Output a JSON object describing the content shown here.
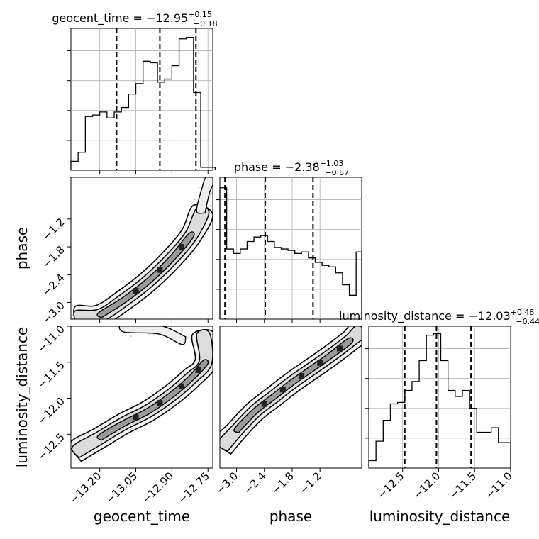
{
  "chart_data": {
    "type": "corner",
    "params": [
      "geocent_time",
      "phase",
      "luminosity_distance"
    ],
    "grid": true,
    "quantile_line_style": "dashed",
    "panel_titles": [
      {
        "param": "geocent_time",
        "text": "geocent_time = −12.95",
        "sup": "+0.15",
        "sub": "−0.18"
      },
      {
        "param": "phase",
        "text": "phase = −2.38",
        "sup": "+1.03",
        "sub": "−0.87"
      },
      {
        "param": "luminosity_distance",
        "text": "luminosity_distance = −12.03",
        "sup": "+0.48",
        "sub": "−0.44"
      }
    ],
    "axis_labels": {
      "x": [
        "geocent_time",
        "phase",
        "luminosity_distance"
      ],
      "y": [
        "phase",
        "luminosity_distance"
      ]
    },
    "ranges": {
      "geocent_time": [
        -13.32,
        -12.73
      ],
      "phase": [
        -3.36,
        -0.3
      ],
      "luminosity_distance": [
        -12.97,
        -11.0
      ]
    },
    "ticks": {
      "geocent_time": {
        "values": [
          -13.2,
          -13.05,
          -12.9,
          -12.75
        ],
        "labels": [
          "−13.20",
          "−13.05",
          "−12.90",
          "−12.75"
        ]
      },
      "phase": {
        "values": [
          -3.0,
          -2.4,
          -1.8,
          -1.2
        ],
        "labels": [
          "−3.0",
          "−2.4",
          "−1.8",
          "−1.2"
        ]
      },
      "luminosity_distance": {
        "values": [
          -12.5,
          -12.0,
          -11.5,
          -11.0
        ],
        "labels": [
          "−12.5",
          "−12.0",
          "−11.5",
          "−11.0"
        ]
      }
    },
    "histograms": [
      {
        "param": "geocent_time",
        "bin_edges": [
          -13.32,
          -13.29,
          -13.26,
          -13.23,
          -13.2,
          -13.17,
          -13.14,
          -13.11,
          -13.08,
          -13.05,
          -13.02,
          -12.99,
          -12.96,
          -12.93,
          -12.9,
          -12.87,
          -12.84,
          -12.81,
          -12.78,
          -12.75,
          -12.72
        ],
        "counts": [
          6,
          12,
          36,
          37,
          39,
          35,
          39,
          42,
          51,
          58,
          73,
          72,
          59,
          61,
          70,
          88,
          89,
          52,
          2,
          2
        ],
        "ymax": 95,
        "quantiles": [
          -13.13,
          -12.95,
          -12.8
        ]
      },
      {
        "param": "phase",
        "bin_edges": [
          -3.36,
          -3.213,
          -3.066,
          -2.919,
          -2.772,
          -2.625,
          -2.478,
          -2.331,
          -2.184,
          -2.037,
          -1.89,
          -1.743,
          -1.596,
          -1.449,
          -1.302,
          -1.155,
          -1.008,
          -0.861,
          -0.714,
          -0.567,
          -0.42,
          -0.3
        ],
        "counts": [
          88,
          47,
          44,
          47,
          52,
          55,
          56,
          52,
          48,
          47,
          46,
          44,
          45,
          41,
          38,
          36,
          35,
          31,
          23,
          16,
          45
        ],
        "ymax": 95,
        "quantiles": [
          -3.25,
          -2.38,
          -1.35
        ]
      },
      {
        "param": "luminosity_distance",
        "bin_edges": [
          -12.97,
          -12.87,
          -12.77,
          -12.67,
          -12.57,
          -12.47,
          -12.37,
          -12.27,
          -12.17,
          -12.07,
          -11.97,
          -11.87,
          -11.77,
          -11.67,
          -11.57,
          -11.47,
          -11.37,
          -11.27,
          -11.17,
          -11.07,
          -11.0
        ],
        "counts": [
          5,
          18,
          32,
          43,
          44,
          52,
          58,
          72,
          89,
          90,
          72,
          52,
          48,
          52,
          40,
          24,
          24,
          27,
          17,
          17
        ],
        "ymax": 95,
        "quantiles": [
          -12.47,
          -12.03,
          -11.55
        ]
      }
    ],
    "contour_panels": [
      {
        "x": "geocent_time",
        "y": "phase",
        "ridge": [
          [
            -13.3,
            -3.32
          ],
          [
            -13.2,
            -3.28
          ],
          [
            -13.1,
            -2.95
          ],
          [
            -13.0,
            -2.55
          ],
          [
            -12.9,
            -2.05
          ],
          [
            -12.82,
            -1.55
          ],
          [
            -12.77,
            -1.0
          ]
        ],
        "branch": [
          [
            -12.78,
            -1.05
          ],
          [
            -12.76,
            -0.6
          ],
          [
            -12.74,
            -0.32
          ]
        ],
        "widths": [
          0.1,
          0.09,
          0.13
        ]
      },
      {
        "x": "geocent_time",
        "y": "luminosity_distance",
        "ridge": [
          [
            -13.3,
            -12.75
          ],
          [
            -13.2,
            -12.55
          ],
          [
            -13.1,
            -12.35
          ],
          [
            -13.0,
            -12.18
          ],
          [
            -12.9,
            -11.95
          ],
          [
            -12.82,
            -11.72
          ],
          [
            -12.76,
            -11.5
          ],
          [
            -12.77,
            -11.1
          ]
        ],
        "branch": [
          [
            -12.85,
            -11.2
          ],
          [
            -12.95,
            -11.05
          ],
          [
            -13.1,
            -11.02
          ]
        ],
        "widths": [
          0.08,
          0.07,
          0.1
        ]
      },
      {
        "x": "phase",
        "y": "luminosity_distance",
        "ridge": [
          [
            -3.3,
            -12.68
          ],
          [
            -3.0,
            -12.45
          ],
          [
            -2.6,
            -12.18
          ],
          [
            -2.2,
            -11.98
          ],
          [
            -1.8,
            -11.78
          ],
          [
            -1.4,
            -11.6
          ],
          [
            -1.0,
            -11.42
          ],
          [
            -0.55,
            -11.2
          ],
          [
            -0.3,
            -11.05
          ]
        ],
        "branch": [],
        "widths": [
          0.07,
          0.06,
          0.09
        ]
      }
    ]
  }
}
